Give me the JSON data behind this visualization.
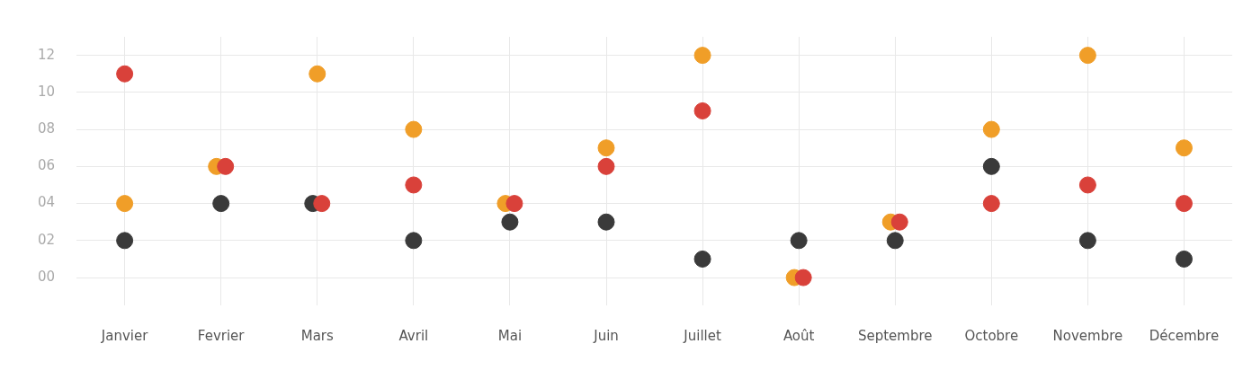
{
  "chart_data": {
    "type": "scatter",
    "categories": [
      "Janvier",
      "Fevrier",
      "Mars",
      "Avril",
      "Mai",
      "Juin",
      "Juillet",
      "Août",
      "Septembre",
      "Octobre",
      "Novembre",
      "Décembre"
    ],
    "series": [
      {
        "color": "#d9413a",
        "values": [
          11,
          6,
          4,
          5,
          4,
          6,
          9,
          0,
          3,
          4,
          5,
          4
        ]
      },
      {
        "color": "#f09e28",
        "values": [
          4,
          6,
          11,
          8,
          4,
          7,
          12,
          0,
          3,
          8,
          12,
          7
        ]
      },
      {
        "color": "#3a3a3a",
        "values": [
          2,
          4,
          4,
          2,
          3,
          3,
          1,
          2,
          2,
          6,
          2,
          1
        ]
      }
    ],
    "ylim": [
      -1.5,
      13
    ],
    "yticks": [
      {
        "value": 0,
        "label": "00"
      },
      {
        "value": 2,
        "label": "02"
      },
      {
        "value": 4,
        "label": "04"
      },
      {
        "value": 6,
        "label": "06"
      },
      {
        "value": 8,
        "label": "08"
      },
      {
        "value": 10,
        "label": "10"
      },
      {
        "value": 12,
        "label": "12"
      }
    ],
    "grid": true,
    "legend": false,
    "marker": "circle"
  }
}
